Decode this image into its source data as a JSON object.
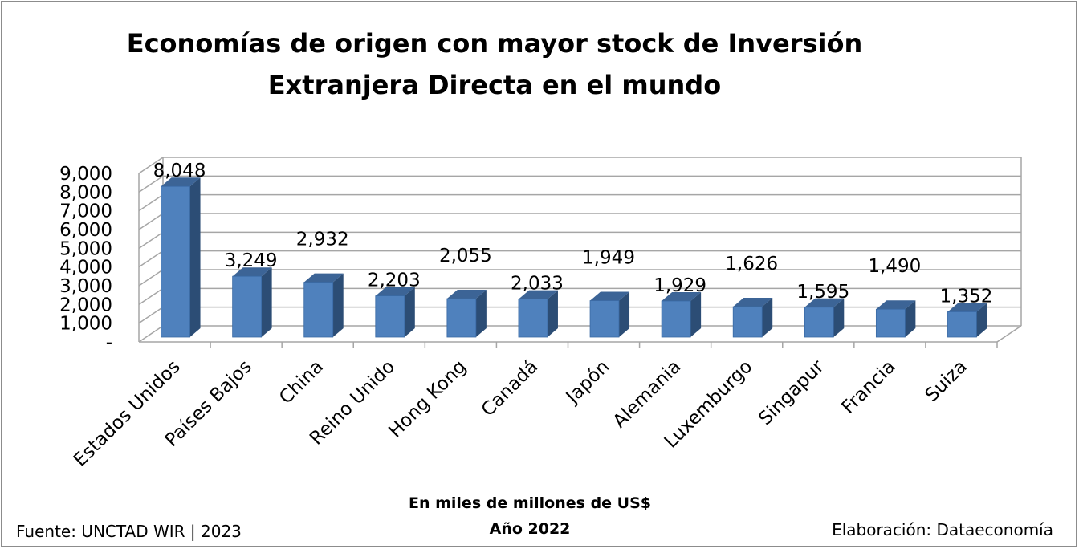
{
  "chart_data": {
    "type": "bar",
    "title_lines": [
      "Economías de origen con mayor stock de Inversión",
      "Extranjera Directa en el mundo"
    ],
    "categories": [
      "Estados Unidos",
      "Países Bajos",
      "China",
      "Reino Unido",
      "Hong Kong",
      "Canadá",
      "Japón",
      "Alemania",
      "Luxemburgo",
      "Singapur",
      "Francia",
      "Suiza"
    ],
    "values": [
      8048,
      3249,
      2932,
      2203,
      2055,
      2033,
      1949,
      1929,
      1626,
      1595,
      1490,
      1352
    ],
    "data_labels": [
      "8,048",
      "3,249",
      "2,932",
      "2,203",
      "2,055",
      "2,033",
      "1,949",
      "1,929",
      "1,626",
      "1,595",
      "1,490",
      "1,352"
    ],
    "y_ticks": [
      "-",
      "1,000",
      "2,000",
      "3,000",
      "4,000",
      "5,000",
      "6,000",
      "7,000",
      "8,000",
      "9,000"
    ],
    "ylim": [
      0,
      9000
    ],
    "grid": true,
    "style": "3d-column",
    "colors": {
      "bar_front": "#4f81bd",
      "bar_side": "#2c4d75",
      "bar_top": "#3c6496",
      "grid": "#a6a6a6"
    }
  },
  "footer": {
    "unit": "En miles de millones de US$",
    "year": "Año 2022",
    "source": "Fuente: UNCTAD WIR | 2023",
    "credit": "Elaboración: Dataeconomía"
  }
}
